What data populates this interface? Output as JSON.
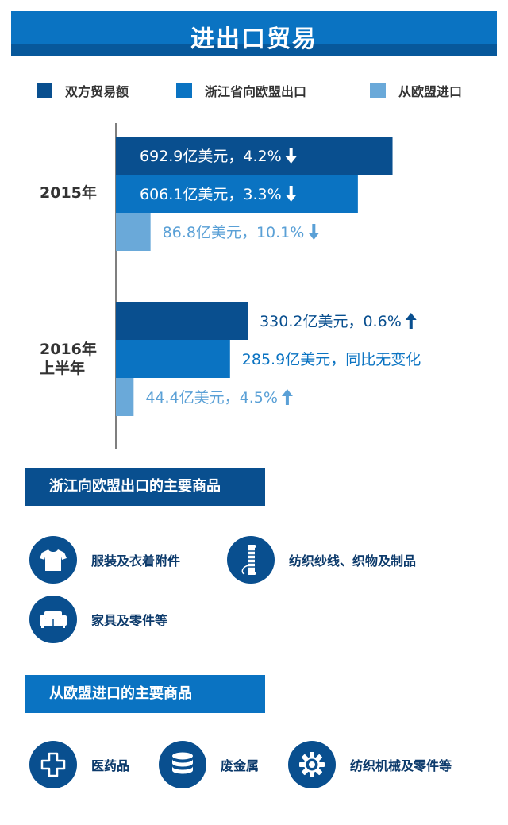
{
  "header": {
    "title": "进出口贸易"
  },
  "colors": {
    "dark": "#094f8f",
    "medium": "#0a73c2",
    "light": "#6aa9d9",
    "textDark": "#094f8f",
    "textMedium": "#0a73c2",
    "textLight": "#5aa0d6",
    "textDefault": "#333333"
  },
  "chart_data": {
    "type": "bar",
    "orientation": "horizontal",
    "categories": [
      "2015年",
      "2016年上半年"
    ],
    "series": [
      {
        "name": "双方贸易额",
        "color": "#094f8f",
        "values": [
          692.9,
          330.2
        ],
        "labels": [
          "692.9亿美元，4.2%",
          "330.2亿美元，0.6%"
        ],
        "trend": [
          "down",
          "up"
        ]
      },
      {
        "name": "浙江省向欧盟出口",
        "color": "#0a73c2",
        "values": [
          606.1,
          285.9
        ],
        "labels": [
          "606.1亿美元，3.3%",
          "285.9亿美元，同比无变化"
        ],
        "trend": [
          "down",
          "none"
        ]
      },
      {
        "name": "从欧盟进口",
        "color": "#6aa9d9",
        "values": [
          86.8,
          44.4
        ],
        "labels": [
          "86.8亿美元，10.1%",
          "44.4亿美元，4.5%"
        ],
        "trend": [
          "down",
          "up"
        ]
      }
    ],
    "legend": "top",
    "grid": false
  },
  "category_lines": [
    [
      "2015年"
    ],
    [
      "2016年",
      "上半年"
    ]
  ],
  "exports_section": {
    "title": "浙江向欧盟出口的主要商品",
    "items": [
      {
        "icon": "tshirt-icon",
        "label": "服装及衣着附件"
      },
      {
        "icon": "thread-spool-icon",
        "label": "纺织纱线、织物及制品"
      },
      {
        "icon": "sofa-icon",
        "label": "家具及零件等"
      }
    ]
  },
  "imports_section": {
    "title": "从欧盟进口的主要商品",
    "items": [
      {
        "icon": "medical-cross-icon",
        "label": "医药品"
      },
      {
        "icon": "coin-stack-icon",
        "label": "废金属"
      },
      {
        "icon": "gear-icon",
        "label": "纺织机械及零件等"
      }
    ]
  }
}
